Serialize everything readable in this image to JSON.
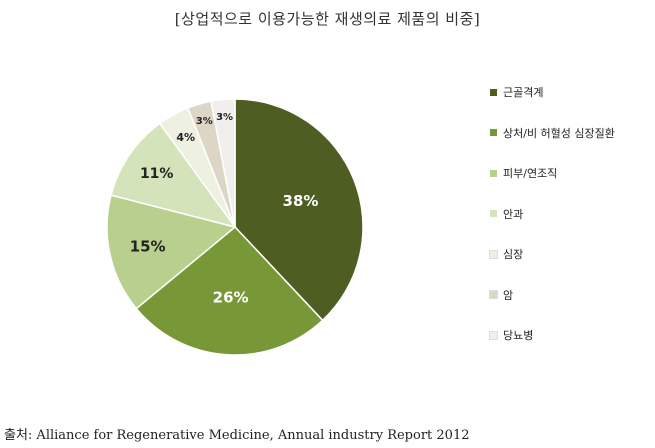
{
  "chart_data": {
    "type": "pie",
    "title": "[상업적으로 이용가능한 재생의료 제품의 비중]",
    "legend_position": "right",
    "slices": [
      {
        "name": "근골격계",
        "value": 38,
        "label": "38%",
        "color": "#4e5e23"
      },
      {
        "name": "상처/비 허혈성 심장질환",
        "value": 26,
        "label": "26%",
        "color": "#789838"
      },
      {
        "name": "피부/연조직",
        "value": 15,
        "label": "15%",
        "color": "#b9cf8e"
      },
      {
        "name": "안과",
        "value": 11,
        "label": "11%",
        "color": "#d5e3bb"
      },
      {
        "name": "심장",
        "value": 4,
        "label": "4%",
        "color": "#eef0e2"
      },
      {
        "name": "암",
        "value": 3,
        "label": "3%",
        "color": "#ddd6c6"
      },
      {
        "name": "당뇨병",
        "value": 3,
        "label": "3%",
        "color": "#f1eeee"
      }
    ]
  },
  "source": "출처: Alliance for Regenerative Medicine, Annual industry Report 2012"
}
